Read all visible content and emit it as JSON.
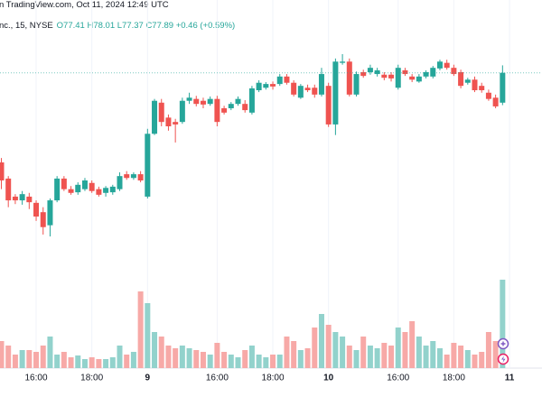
{
  "header": {
    "source": "n TradingView.com, Oct 11, 2024 12:49 UTC",
    "symbol": "nc., 15, NYSE",
    "ohlc": "O77.41 H78.01 L77.37 C77.89 +0.46 (+0.59%)"
  },
  "chart_data": {
    "type": "candlestick",
    "categories": [
      null,
      null,
      null,
      null,
      null,
      "16:00",
      null,
      null,
      null,
      null,
      null,
      null,
      null,
      "18:00",
      null,
      null,
      null,
      null,
      null,
      null,
      null,
      "9",
      null,
      null,
      null,
      null,
      null,
      null,
      null,
      null,
      null,
      "16:00",
      null,
      null,
      null,
      null,
      null,
      null,
      null,
      "18:00",
      null,
      null,
      null,
      null,
      null,
      null,
      null,
      "10",
      null,
      null,
      null,
      null,
      null,
      null,
      null,
      null,
      null,
      "16:00",
      null,
      null,
      null,
      null,
      null,
      null,
      null,
      "18:00",
      null,
      null,
      null,
      null,
      null,
      null,
      null,
      "11"
    ],
    "open": [
      76.45,
      76.19,
      75.9,
      75.84,
      75.9,
      75.8,
      75.65,
      75.44,
      75.84,
      76.19,
      76.02,
      75.97,
      76.02,
      76.12,
      76.02,
      75.96,
      75.97,
      76.02,
      76.26,
      76.2,
      76.26,
      75.9,
      76.91,
      77.41,
      77.17,
      77.1,
      77.1,
      77.44,
      77.47,
      77.44,
      77.39,
      77.47,
      77.32,
      77.32,
      77.39,
      77.39,
      77.25,
      77.61,
      77.65,
      77.71,
      77.71,
      77.83,
      77.73,
      77.49,
      77.65,
      77.65,
      77.54,
      77.68,
      77.06,
      78.05,
      78.07,
      77.54,
      77.9,
      77.9,
      77.87,
      77.86,
      77.86,
      77.65,
      77.93,
      77.83,
      77.75,
      77.83,
      77.83,
      77.96,
      78.05,
      77.97,
      77.9,
      77.73,
      77.78,
      77.68,
      77.57,
      77.49,
      77.41,
      null
    ],
    "high": [
      76.52,
      76.23,
      75.94,
      75.99,
      75.96,
      75.84,
      75.73,
      75.87,
      76.23,
      76.23,
      76.07,
      76.13,
      76.2,
      76.16,
      76.06,
      76.07,
      76.09,
      76.29,
      76.31,
      76.29,
      76.31,
      76.99,
      77.47,
      77.47,
      77.22,
      77.15,
      77.49,
      77.57,
      77.52,
      77.49,
      77.51,
      77.52,
      77.36,
      77.42,
      77.51,
      77.45,
      77.68,
      77.77,
      77.74,
      77.75,
      77.87,
      77.87,
      77.77,
      77.71,
      77.7,
      77.7,
      77.97,
      77.73,
      78.12,
      78.19,
      78.12,
      77.91,
      77.94,
      78.02,
      77.97,
      77.9,
      77.9,
      78.02,
      77.97,
      77.87,
      77.87,
      77.93,
      78.0,
      78.1,
      78.1,
      78.02,
      77.94,
      77.81,
      77.83,
      77.73,
      77.62,
      77.54,
      78.01,
      null
    ],
    "low": [
      76.02,
      75.73,
      75.78,
      75.77,
      75.7,
      75.51,
      75.29,
      75.26,
      75.81,
      75.99,
      75.93,
      75.93,
      75.99,
      75.96,
      75.9,
      75.9,
      75.93,
      75.99,
      76.17,
      76.17,
      76.13,
      75.87,
      76.89,
      77.03,
      76.96,
      76.77,
      77.07,
      77.39,
      77.35,
      77.32,
      77.36,
      77.03,
      77.22,
      77.29,
      77.36,
      77.25,
      77.22,
      77.58,
      77.62,
      77.62,
      77.68,
      77.7,
      77.51,
      77.47,
      77.58,
      77.49,
      77.51,
      77.02,
      76.89,
      78.02,
      77.51,
      77.51,
      77.81,
      77.86,
      77.83,
      77.77,
      77.75,
      77.62,
      77.84,
      77.74,
      77.73,
      77.8,
      77.8,
      77.93,
      77.94,
      77.84,
      77.64,
      77.7,
      77.58,
      77.57,
      77.44,
      77.32,
      77.37,
      null
    ],
    "close": [
      76.16,
      75.84,
      75.84,
      75.94,
      75.81,
      75.58,
      75.41,
      75.84,
      76.19,
      76.02,
      75.96,
      76.09,
      76.16,
      75.99,
      75.93,
      76.04,
      76.06,
      76.23,
      76.2,
      76.26,
      76.16,
      76.91,
      77.44,
      77.1,
      77.03,
      77.06,
      77.44,
      77.49,
      77.39,
      77.38,
      77.47,
      77.1,
      77.25,
      77.39,
      77.47,
      77.29,
      77.64,
      77.73,
      77.71,
      77.67,
      77.83,
      77.73,
      77.54,
      77.68,
      77.61,
      77.54,
      77.87,
      77.06,
      78.07,
      78.07,
      77.54,
      77.87,
      77.84,
      77.97,
      77.93,
      77.81,
      77.8,
      77.97,
      77.87,
      77.78,
      77.83,
      77.9,
      77.97,
      78.07,
      77.97,
      77.87,
      77.68,
      77.78,
      77.61,
      77.61,
      77.47,
      77.35,
      77.89,
      null
    ],
    "volume": [
      30,
      25,
      15,
      20,
      20,
      18,
      25,
      35,
      15,
      18,
      12,
      14,
      10,
      12,
      10,
      10,
      12,
      25,
      15,
      18,
      85,
      72,
      40,
      35,
      25,
      22,
      25,
      22,
      20,
      18,
      15,
      28,
      18,
      15,
      12,
      20,
      25,
      15,
      12,
      15,
      15,
      35,
      30,
      20,
      22,
      45,
      60,
      48,
      40,
      35,
      25,
      20,
      35,
      25,
      22,
      28,
      25,
      45,
      40,
      52,
      35,
      25,
      30,
      22,
      15,
      28,
      25,
      20,
      15,
      18,
      40,
      30,
      98,
      null
    ],
    "up_color": "#26a69a",
    "down_color": "#ef5350",
    "volume_up_color": "#92d2cc",
    "volume_down_color": "#f7a9a7",
    "ylim": [
      74.71,
      79.06
    ],
    "volume_ylim": [
      0,
      100
    ],
    "grid": true
  }
}
